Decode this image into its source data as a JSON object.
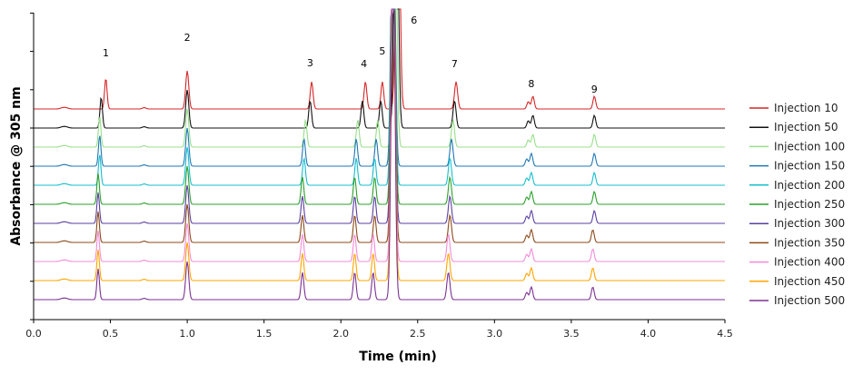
{
  "chart_data": {
    "type": "line",
    "title": "",
    "xlabel": "Time (min)",
    "ylabel": "Absorbance @ 305 nm",
    "xlim": [
      0,
      4.5
    ],
    "xticks": [
      "0.0",
      "0.5",
      "1.0",
      "1.5",
      "2.0",
      "2.5",
      "3.0",
      "3.5",
      "4.0",
      "4.5"
    ],
    "y_tick_labels_shown": false,
    "grid": false,
    "stacked_offset_traces": true,
    "legend_position": "right",
    "peak_labels": [
      {
        "label": "1",
        "x": 0.47
      },
      {
        "label": "2",
        "x": 1.0
      },
      {
        "label": "3",
        "x": 1.8
      },
      {
        "label": "4",
        "x": 2.15
      },
      {
        "label": "5",
        "x": 2.27
      },
      {
        "label": "6",
        "x": 2.37
      },
      {
        "label": "7",
        "x": 2.74
      },
      {
        "label": "8",
        "x": 3.24
      },
      {
        "label": "9",
        "x": 3.65
      }
    ],
    "series": [
      {
        "name": "Injection 10",
        "color": "#d62728",
        "peak_times": [
          0.47,
          1.0,
          1.81,
          2.16,
          2.27,
          2.37,
          2.75,
          3.25,
          3.65
        ]
      },
      {
        "name": "Injection 50",
        "color": "#111111",
        "peak_times": [
          0.44,
          1.0,
          1.8,
          2.14,
          2.26,
          2.36,
          2.74,
          3.25,
          3.65
        ]
      },
      {
        "name": "Injection 100",
        "color": "#98df8a",
        "peak_times": [
          0.43,
          1.0,
          1.77,
          2.11,
          2.24,
          2.35,
          2.73,
          3.25,
          3.65
        ]
      },
      {
        "name": "Injection 150",
        "color": "#1f77b4",
        "peak_times": [
          0.43,
          1.0,
          1.76,
          2.1,
          2.23,
          2.34,
          2.72,
          3.24,
          3.65
        ]
      },
      {
        "name": "Injection 200",
        "color": "#17becf",
        "peak_times": [
          0.43,
          1.0,
          1.76,
          2.1,
          2.22,
          2.34,
          2.71,
          3.24,
          3.65
        ]
      },
      {
        "name": "Injection 250",
        "color": "#2ca02c",
        "peak_times": [
          0.42,
          1.0,
          1.75,
          2.09,
          2.22,
          2.34,
          2.71,
          3.24,
          3.65
        ]
      },
      {
        "name": "Injection 300",
        "color": "#5b3fa0",
        "peak_times": [
          0.42,
          1.0,
          1.75,
          2.09,
          2.22,
          2.34,
          2.71,
          3.24,
          3.65
        ]
      },
      {
        "name": "Injection 350",
        "color": "#8c4a1a",
        "peak_times": [
          0.42,
          1.0,
          1.75,
          2.09,
          2.22,
          2.34,
          2.71,
          3.24,
          3.64
        ]
      },
      {
        "name": "Injection 400",
        "color": "#f28cd8",
        "peak_times": [
          0.42,
          1.0,
          1.75,
          2.09,
          2.21,
          2.34,
          2.7,
          3.24,
          3.64
        ]
      },
      {
        "name": "Injection 450",
        "color": "#ffa500",
        "peak_times": [
          0.42,
          1.0,
          1.75,
          2.09,
          2.21,
          2.34,
          2.7,
          3.24,
          3.64
        ]
      },
      {
        "name": "Injection 500",
        "color": "#7b3294",
        "peak_times": [
          0.42,
          1.0,
          1.75,
          2.09,
          2.21,
          2.34,
          2.7,
          3.24,
          3.64
        ]
      }
    ]
  }
}
